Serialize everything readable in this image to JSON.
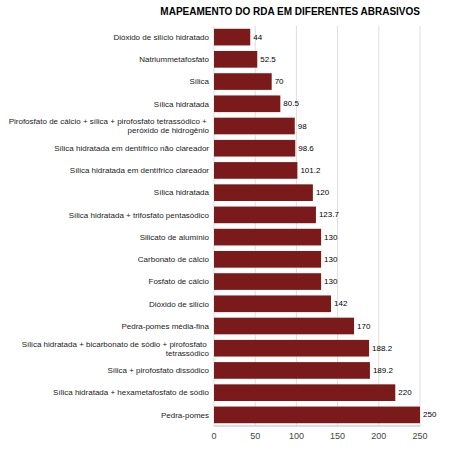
{
  "chart_data": {
    "type": "bar",
    "orientation": "horizontal",
    "title": "MAPEAMENTO DO RDA EM DIFERENTES ABRASIVOS",
    "categories": [
      "Pedra-pomes",
      "Sílica hidratada  + hexametafosfato de sódio",
      "Sílica + pirofosfato dissódico",
      "Sílica hidratada + bicarbonato de sódio + pirofosfato tetrassódico",
      "Pedra-pomes média-fina",
      "Dióxido de silício",
      "Fosfato de cálcio",
      "Carbonato de cálcio",
      "Silicato de alumínio",
      "Sílica hidratada + trifosfato pentasódico",
      "Sílica hidratada",
      "Sílica hidratada em dentífrico clareador",
      "Sílica hidratada em dentífrico não clareador",
      "Pirofosfato de cálcio + sílica + pirofosfato tetrassódico + peróxido de hidrogênio",
      "Sílica hidratada",
      "Sílica",
      "Natriummetafosfato",
      "Dióxido de silício hidratado"
    ],
    "values": [
      250,
      220,
      189.2,
      188.2,
      170,
      142,
      130,
      130,
      130,
      123.7,
      120,
      101.2,
      98.6,
      98,
      80.5,
      70,
      52.5,
      44
    ],
    "color": "#7b1a1a",
    "xlim": [
      0,
      250
    ],
    "xticks": [
      0,
      50,
      100,
      150,
      200,
      250
    ],
    "grid": true,
    "data_labels": true
  }
}
